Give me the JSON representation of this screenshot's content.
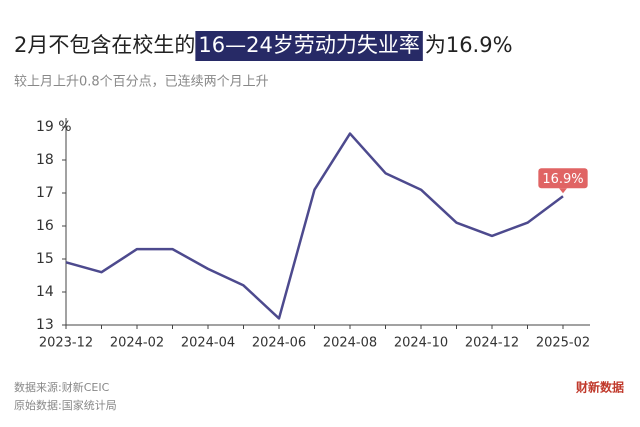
{
  "chart_data": {
    "type": "line",
    "title": {
      "before": "2月不包含在校生的",
      "highlight": "16—24岁劳动力失业率",
      "after": "为16.9%"
    },
    "subtitle": "较上月上升0.8个百分点，已连续两个月上升",
    "x": [
      "2023-12",
      null,
      "2024-02",
      null,
      "2024-04",
      null,
      "2024-06",
      null,
      "2024-08",
      null,
      "2024-10",
      null,
      "2024-12",
      null,
      "2025-02"
    ],
    "series": [
      {
        "color": "#4d4a8e",
        "values": [
          14.9,
          14.6,
          15.3,
          15.3,
          14.7,
          14.2,
          13.2,
          17.1,
          18.8,
          17.6,
          17.1,
          16.1,
          15.7,
          16.1,
          16.9
        ],
        "value_labels": [
          null,
          null,
          null,
          null,
          null,
          null,
          null,
          null,
          null,
          null,
          null,
          null,
          null,
          null,
          "16.9%"
        ]
      }
    ],
    "ylim": [
      13,
      19
    ],
    "yticks": [
      13,
      14,
      15,
      16,
      17,
      18,
      {
        "value": 19,
        "label": "19 %"
      }
    ],
    "source": "数据来源:财新CEIC",
    "origin": "原始数据:国家统计局",
    "brand": "财新数据"
  }
}
